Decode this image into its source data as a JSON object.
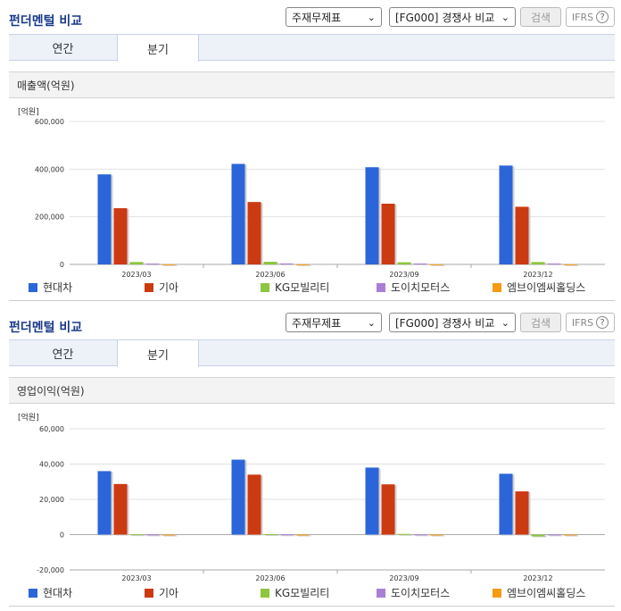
{
  "sections": [
    {
      "title": "펀더멘털 비교",
      "select1": "주재무제표",
      "select2": "[FG000] 경쟁사 비교",
      "search_label": "검색",
      "ifrs_label": "IFRS",
      "help_label": "?",
      "tabs": [
        {
          "label": "연간"
        },
        {
          "label": "분기"
        }
      ],
      "active_tab": 1,
      "metric_label": "매출액(억원)",
      "unit_label": "[억원]"
    },
    {
      "title": "펀더멘털 비교",
      "select1": "주재무제표",
      "select2": "[FG000] 경쟁사 비교",
      "search_label": "검색",
      "ifrs_label": "IFRS",
      "help_label": "?",
      "tabs": [
        {
          "label": "연간"
        },
        {
          "label": "분기"
        }
      ],
      "active_tab": 1,
      "metric_label": "영업이익(억원)",
      "unit_label": "[억원]"
    }
  ],
  "chart_data": [
    {
      "type": "bar",
      "title": "매출액(억원)",
      "ylabel": "[억원]",
      "categories": [
        "2023/03",
        "2023/06",
        "2023/09",
        "2023/12"
      ],
      "ylim": [
        0,
        600000
      ],
      "yticks": [
        0,
        200000,
        400000,
        600000
      ],
      "ytick_labels": [
        "0",
        "200,000",
        "400,000",
        "600,000"
      ],
      "grid": true,
      "legend": "bottom",
      "series": [
        {
          "name": "현대차",
          "color": "#2b65d9",
          "values": [
            378000,
            422000,
            408000,
            415000
          ]
        },
        {
          "name": "기아",
          "color": "#cc3a12",
          "values": [
            236000,
            262000,
            255000,
            242000
          ]
        },
        {
          "name": "KG모빌리티",
          "color": "#8dc63f",
          "values": [
            10000,
            11000,
            9000,
            10000
          ]
        },
        {
          "name": "도이치모터스",
          "color": "#a97fd6",
          "values": [
            3500,
            4000,
            3700,
            3800
          ]
        },
        {
          "name": "엠브이엠씨홀딩스",
          "color": "#f59a12",
          "values": [
            500,
            500,
            500,
            500
          ]
        }
      ]
    },
    {
      "type": "bar",
      "title": "영업이익(억원)",
      "ylabel": "[억원]",
      "categories": [
        "2023/03",
        "2023/06",
        "2023/09",
        "2023/12"
      ],
      "ylim": [
        -20000,
        60000
      ],
      "yticks": [
        -20000,
        0,
        20000,
        40000,
        60000
      ],
      "ytick_labels": [
        "-20,000",
        "0",
        "20,000",
        "40,000",
        "60,000"
      ],
      "grid": true,
      "legend": "bottom",
      "series": [
        {
          "name": "현대차",
          "color": "#2b65d9",
          "values": [
            36000,
            42500,
            38000,
            34500
          ]
        },
        {
          "name": "기아",
          "color": "#cc3a12",
          "values": [
            28700,
            34000,
            28500,
            24500
          ]
        },
        {
          "name": "KG모빌리티",
          "color": "#8dc63f",
          "values": [
            200,
            300,
            400,
            -1000
          ]
        },
        {
          "name": "도이치모터스",
          "color": "#a97fd6",
          "values": [
            100,
            150,
            120,
            80
          ]
        },
        {
          "name": "엠브이엠씨홀딩스",
          "color": "#f59a12",
          "values": [
            20,
            20,
            20,
            20
          ]
        }
      ]
    }
  ]
}
